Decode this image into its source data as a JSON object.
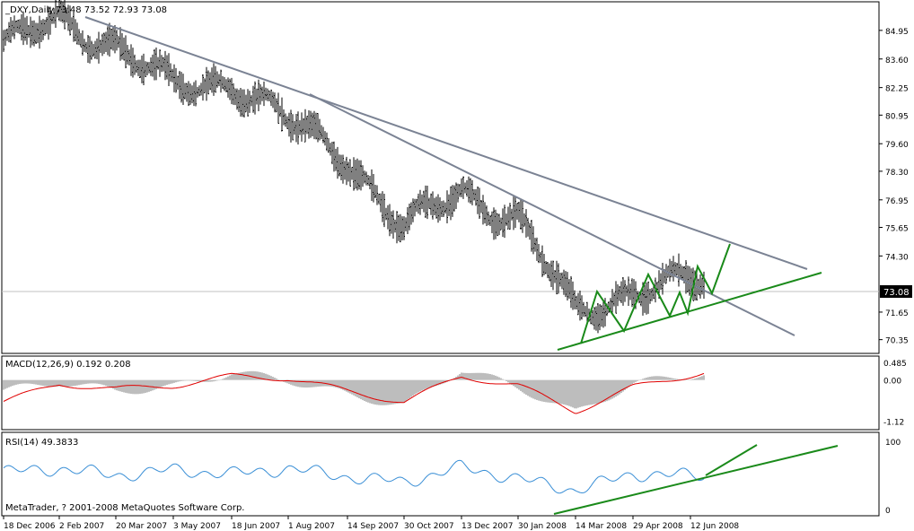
{
  "main": {
    "title": "_DXY,Daily",
    "ohlc": "73.48 73.52 72.93 73.08",
    "price_ticks": [
      "84.95",
      "83.60",
      "82.25",
      "80.95",
      "79.60",
      "78.30",
      "76.95",
      "75.65",
      "74.30",
      "73.08",
      "71.65",
      "70.35"
    ],
    "last_price": "73.08"
  },
  "macd": {
    "title": "MACD(12,26,9) 0.192 0.208",
    "ticks": [
      "0.485",
      "0.00",
      "-1.12"
    ]
  },
  "rsi": {
    "title": "RSI(14) 49.3833",
    "ticks": [
      "100",
      "0"
    ]
  },
  "copyright": "MetaTrader, ? 2001-2008 MetaQuotes Software Corp.",
  "dates": [
    "18 Dec 2006",
    "2 Feb 2007",
    "20 Mar 2007",
    "3 May 2007",
    "18 Jun 2007",
    "1 Aug 2007",
    "14 Sep 2007",
    "30 Oct 2007",
    "13 Dec 2007",
    "30 Jan 2008",
    "14 Mar 2008",
    "29 Apr 2008",
    "12 Jun 2008"
  ],
  "colors": {
    "bars": "#000000",
    "trendline": "#7b8394",
    "pattern": "#1a8a1a",
    "macd_hist": "#bdbdbd",
    "macd_signal": "#e00000",
    "rsi_line": "#3a8fd6",
    "last_price_box": "#000000"
  },
  "chart_data": [
    {
      "type": "ohlc",
      "title": "_DXY,Daily",
      "xlabel": "",
      "ylabel": "",
      "ylim": [
        69.7,
        86.3
      ],
      "x": [
        "18 Dec 2006",
        "2 Feb 2007",
        "20 Mar 2007",
        "3 May 2007",
        "18 Jun 2007",
        "1 Aug 2007",
        "14 Sep 2007",
        "30 Oct 2007",
        "13 Dec 2007",
        "30 Jan 2008",
        "14 Mar 2008",
        "29 Apr 2008",
        "12 Jun 2008"
      ],
      "series": [
        {
          "values": [
            84.2,
            85.4,
            84.3,
            82.2,
            82.6,
            80.6,
            79.0,
            75.5,
            77.4,
            76.0,
            71.6,
            72.7,
            73.1
          ]
        }
      ],
      "last": 73.08
    },
    {
      "type": "line",
      "title": "MACD(12,26,9) 0.192 0.208",
      "ylim": [
        -1.35,
        0.65
      ],
      "x": [
        "18 Dec 2006",
        "2 Feb 2007",
        "20 Mar 2007",
        "3 May 2007",
        "18 Jun 2007",
        "1 Aug 2007",
        "14 Sep 2007",
        "30 Oct 2007",
        "13 Dec 2007",
        "30 Jan 2008",
        "14 Mar 2008",
        "29 Apr 2008",
        "12 Jun 2008"
      ],
      "series": [
        {
          "values": [
            -0.3,
            -0.05,
            -0.3,
            -0.2,
            0.2,
            0.0,
            -0.4,
            -0.7,
            0.3,
            -0.2,
            -0.9,
            -0.1,
            0.19
          ]
        },
        {
          "values": [
            -0.6,
            -0.1,
            -0.25,
            -0.15,
            0.1,
            0.05,
            -0.3,
            -0.6,
            0.1,
            -0.15,
            -0.85,
            -0.2,
            0.21
          ]
        }
      ]
    },
    {
      "type": "line",
      "title": "RSI(14) 49.3833",
      "ylim": [
        0,
        100
      ],
      "x": [
        "18 Dec 2006",
        "2 Feb 2007",
        "20 Mar 2007",
        "3 May 2007",
        "18 Jun 2007",
        "1 Aug 2007",
        "14 Sep 2007",
        "30 Oct 2007",
        "13 Dec 2007",
        "30 Jan 2008",
        "14 Mar 2008",
        "29 Apr 2008",
        "12 Jun 2008"
      ],
      "series": [
        {
          "values": [
            55,
            60,
            50,
            58,
            52,
            60,
            48,
            40,
            62,
            45,
            28,
            52,
            49.38
          ]
        }
      ]
    }
  ]
}
